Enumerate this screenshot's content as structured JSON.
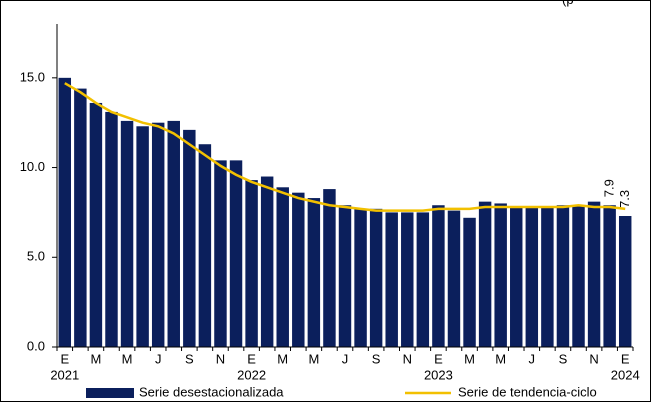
{
  "chart_data": {
    "type": "bar-line",
    "annotation": "(p",
    "categories": [
      "E",
      null,
      "M",
      null,
      "M",
      null,
      "J",
      null,
      "S",
      null,
      "N",
      null,
      "E",
      null,
      "M",
      null,
      "M",
      null,
      "J",
      null,
      "S",
      null,
      "N",
      null,
      "E",
      null,
      "M",
      null,
      "M",
      null,
      "J",
      null,
      "S",
      null,
      "N",
      null,
      "E"
    ],
    "years": [
      "2021",
      "2022",
      "2023",
      "2024"
    ],
    "ylim": [
      0,
      18
    ],
    "yticks": [
      {
        "value": 0,
        "label": "0.0"
      },
      {
        "value": 5,
        "label": "5.0"
      },
      {
        "value": 10,
        "label": "10.0"
      },
      {
        "value": 15,
        "label": "15.0"
      }
    ],
    "series": [
      {
        "name": "Serie desestacionalizada",
        "type": "bar",
        "color": "#0b1f5c",
        "values": [
          15.0,
          14.4,
          13.6,
          13.1,
          12.6,
          12.3,
          12.5,
          12.6,
          12.1,
          11.3,
          10.4,
          10.4,
          9.3,
          9.5,
          8.9,
          8.6,
          8.3,
          8.8,
          7.9,
          7.7,
          7.7,
          7.5,
          7.5,
          7.5,
          7.9,
          7.6,
          7.2,
          8.1,
          8.0,
          7.8,
          7.8,
          7.8,
          7.9,
          7.9,
          8.1,
          7.9,
          7.3
        ],
        "value_labels": [
          null,
          null,
          null,
          null,
          null,
          null,
          null,
          null,
          null,
          null,
          null,
          null,
          null,
          null,
          null,
          null,
          null,
          null,
          null,
          null,
          null,
          null,
          null,
          null,
          null,
          null,
          null,
          null,
          null,
          null,
          null,
          null,
          null,
          null,
          null,
          "7.9",
          "7.3"
        ]
      },
      {
        "name": "Serie de tendencia-ciclo",
        "type": "line",
        "color": "#f2c000",
        "values": [
          14.7,
          14.2,
          13.6,
          13.1,
          12.8,
          12.5,
          12.3,
          11.9,
          11.3,
          10.7,
          10.1,
          9.6,
          9.2,
          8.9,
          8.6,
          8.3,
          8.1,
          7.9,
          7.8,
          7.7,
          7.6,
          7.6,
          7.6,
          7.6,
          7.7,
          7.7,
          7.7,
          7.8,
          7.8,
          7.8,
          7.8,
          7.8,
          7.8,
          7.9,
          7.8,
          7.8,
          7.7
        ]
      }
    ]
  }
}
